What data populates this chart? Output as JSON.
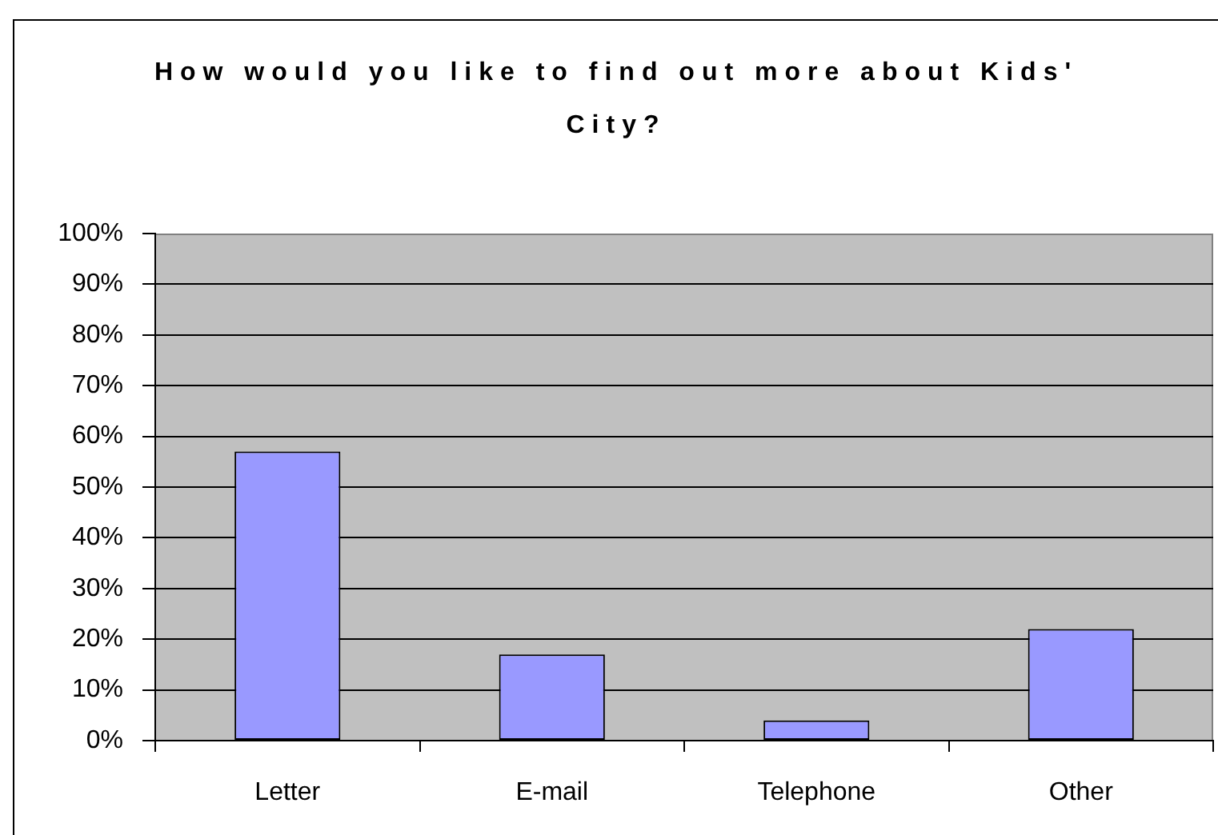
{
  "chart_data": {
    "type": "bar",
    "title": "How would you like to find out more about Kids' City?",
    "categories": [
      "Letter",
      "E-mail",
      "Telephone",
      "Other"
    ],
    "values": [
      57,
      17,
      4,
      22
    ],
    "color": "#9999ff",
    "ylim": [
      0,
      100
    ],
    "yticks": [
      {
        "value": 0,
        "label": "0%"
      },
      {
        "value": 10,
        "label": "10%"
      },
      {
        "value": 20,
        "label": "20%"
      },
      {
        "value": 30,
        "label": "30%"
      },
      {
        "value": 40,
        "label": "40%"
      },
      {
        "value": 50,
        "label": "50%"
      },
      {
        "value": 60,
        "label": "60%"
      },
      {
        "value": 70,
        "label": "70%"
      },
      {
        "value": 80,
        "label": "80%"
      },
      {
        "value": 90,
        "label": "90%"
      },
      {
        "value": 100,
        "label": "100%"
      }
    ],
    "grid": "y"
  }
}
